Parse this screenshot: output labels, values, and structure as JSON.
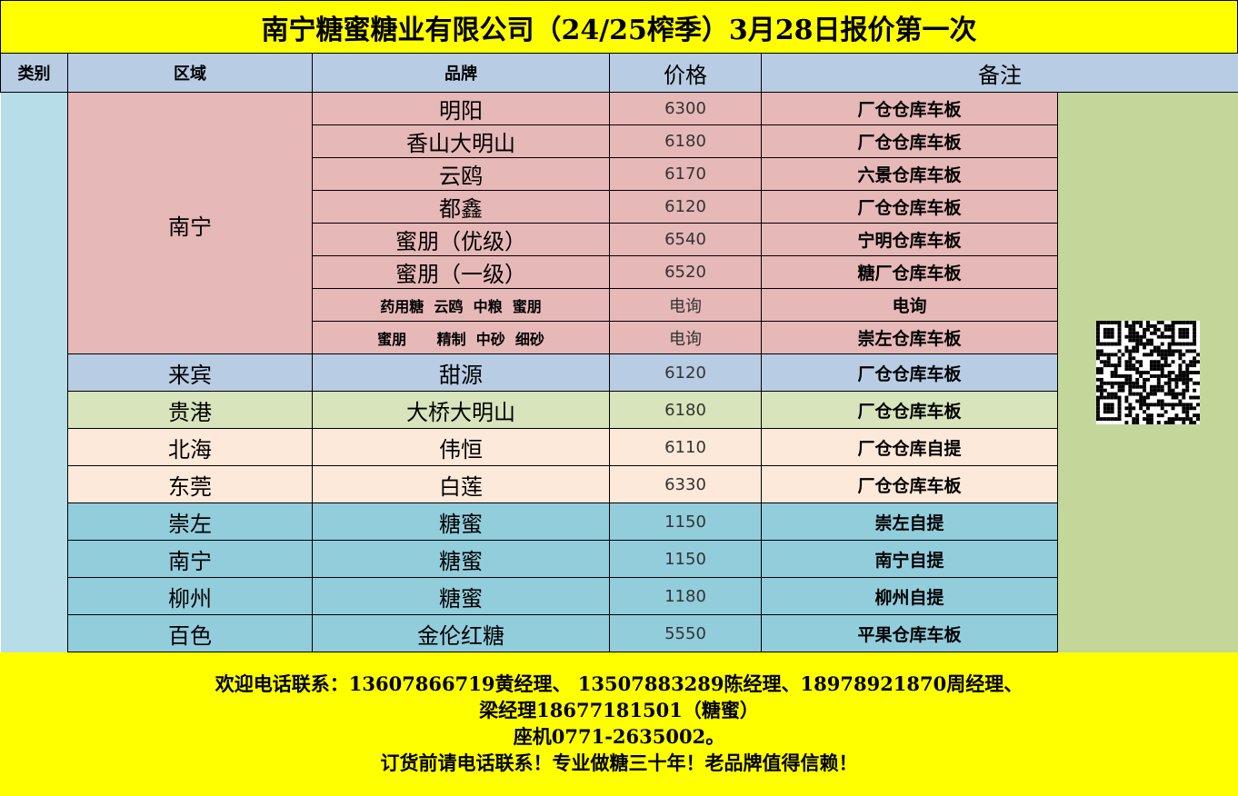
{
  "title": "南宁糖蜜糖业有限公司（24/25榨季）3月28日报价第一次",
  "headers": {
    "category": "类别",
    "region": "区域",
    "brand": "品牌",
    "price": "价格",
    "remark": "备注"
  },
  "colors": {
    "title_bg": "#ffff00",
    "header_bg": "#b8cce4",
    "nanning": "#e6b8b7",
    "laibin": "#b8cce4",
    "guigang": "#d8e4bc",
    "peach": "#fde9d9",
    "teal": "#92cddc",
    "category_col": "#b7dee8",
    "side_panel": "#c4d79b"
  },
  "nanning_group": {
    "region": "南宁",
    "rows": [
      {
        "brand": "明阳",
        "price": "6300",
        "remark": "厂仓仓库车板",
        "small": false
      },
      {
        "brand": "香山大明山",
        "price": "6180",
        "remark": "厂仓仓库车板",
        "small": false
      },
      {
        "brand": "云鸥",
        "price": "6170",
        "remark": "六景仓库车板",
        "small": false
      },
      {
        "brand": "都鑫",
        "price": "6120",
        "remark": "厂仓仓库车板",
        "small": false
      },
      {
        "brand": "蜜朋（优级）",
        "price": "6540",
        "remark": "宁明仓库车板",
        "small": false
      },
      {
        "brand": "蜜朋（一级）",
        "price": "6520",
        "remark": "糖厂仓库车板",
        "small": false
      },
      {
        "brand": "药用糖  云鸥  中粮  蜜朋",
        "price": "电询",
        "remark": "电询",
        "small": true
      },
      {
        "brand": "蜜朋      精制  中砂  细砂",
        "price": "电询",
        "remark": "崇左仓库车板",
        "small": true
      }
    ]
  },
  "other_rows": [
    {
      "region": "来宾",
      "brand": "甜源",
      "price": "6120",
      "remark": "厂仓仓库车板",
      "color": "#b8cce4"
    },
    {
      "region": "贵港",
      "brand": "大桥大明山",
      "price": "6180",
      "remark": "厂仓仓库车板",
      "color": "#d8e4bc"
    },
    {
      "region": "北海",
      "brand": "伟恒",
      "price": "6110",
      "remark": "厂仓仓库自提",
      "color": "#fde9d9"
    },
    {
      "region": "东莞",
      "brand": "白莲",
      "price": "6330",
      "remark": "厂仓仓库车板",
      "color": "#fde9d9"
    },
    {
      "region": "崇左",
      "brand": "糖蜜",
      "price": "1150",
      "remark": "崇左自提",
      "color": "#92cddc"
    },
    {
      "region": "南宁",
      "brand": "糖蜜",
      "price": "1150",
      "remark": "南宁自提",
      "color": "#92cddc"
    },
    {
      "region": "柳州",
      "brand": "糖蜜",
      "price": "1180",
      "remark": "柳州自提",
      "color": "#92cddc"
    },
    {
      "region": "百色",
      "brand": "金伦红糖",
      "price": "5550",
      "remark": "平果仓库车板",
      "color": "#92cddc"
    }
  ],
  "qr_icon": "qr-code-icon",
  "footer": {
    "lines": [
      "欢迎电话联系：13607866719黄经理、 13507883289陈经理、18978921870周经理、",
      "梁经理18677181501（糖蜜）",
      "座机0771-2635002。",
      "订货前请电话联系！专业做糖三十年！老品牌值得信赖！"
    ]
  }
}
